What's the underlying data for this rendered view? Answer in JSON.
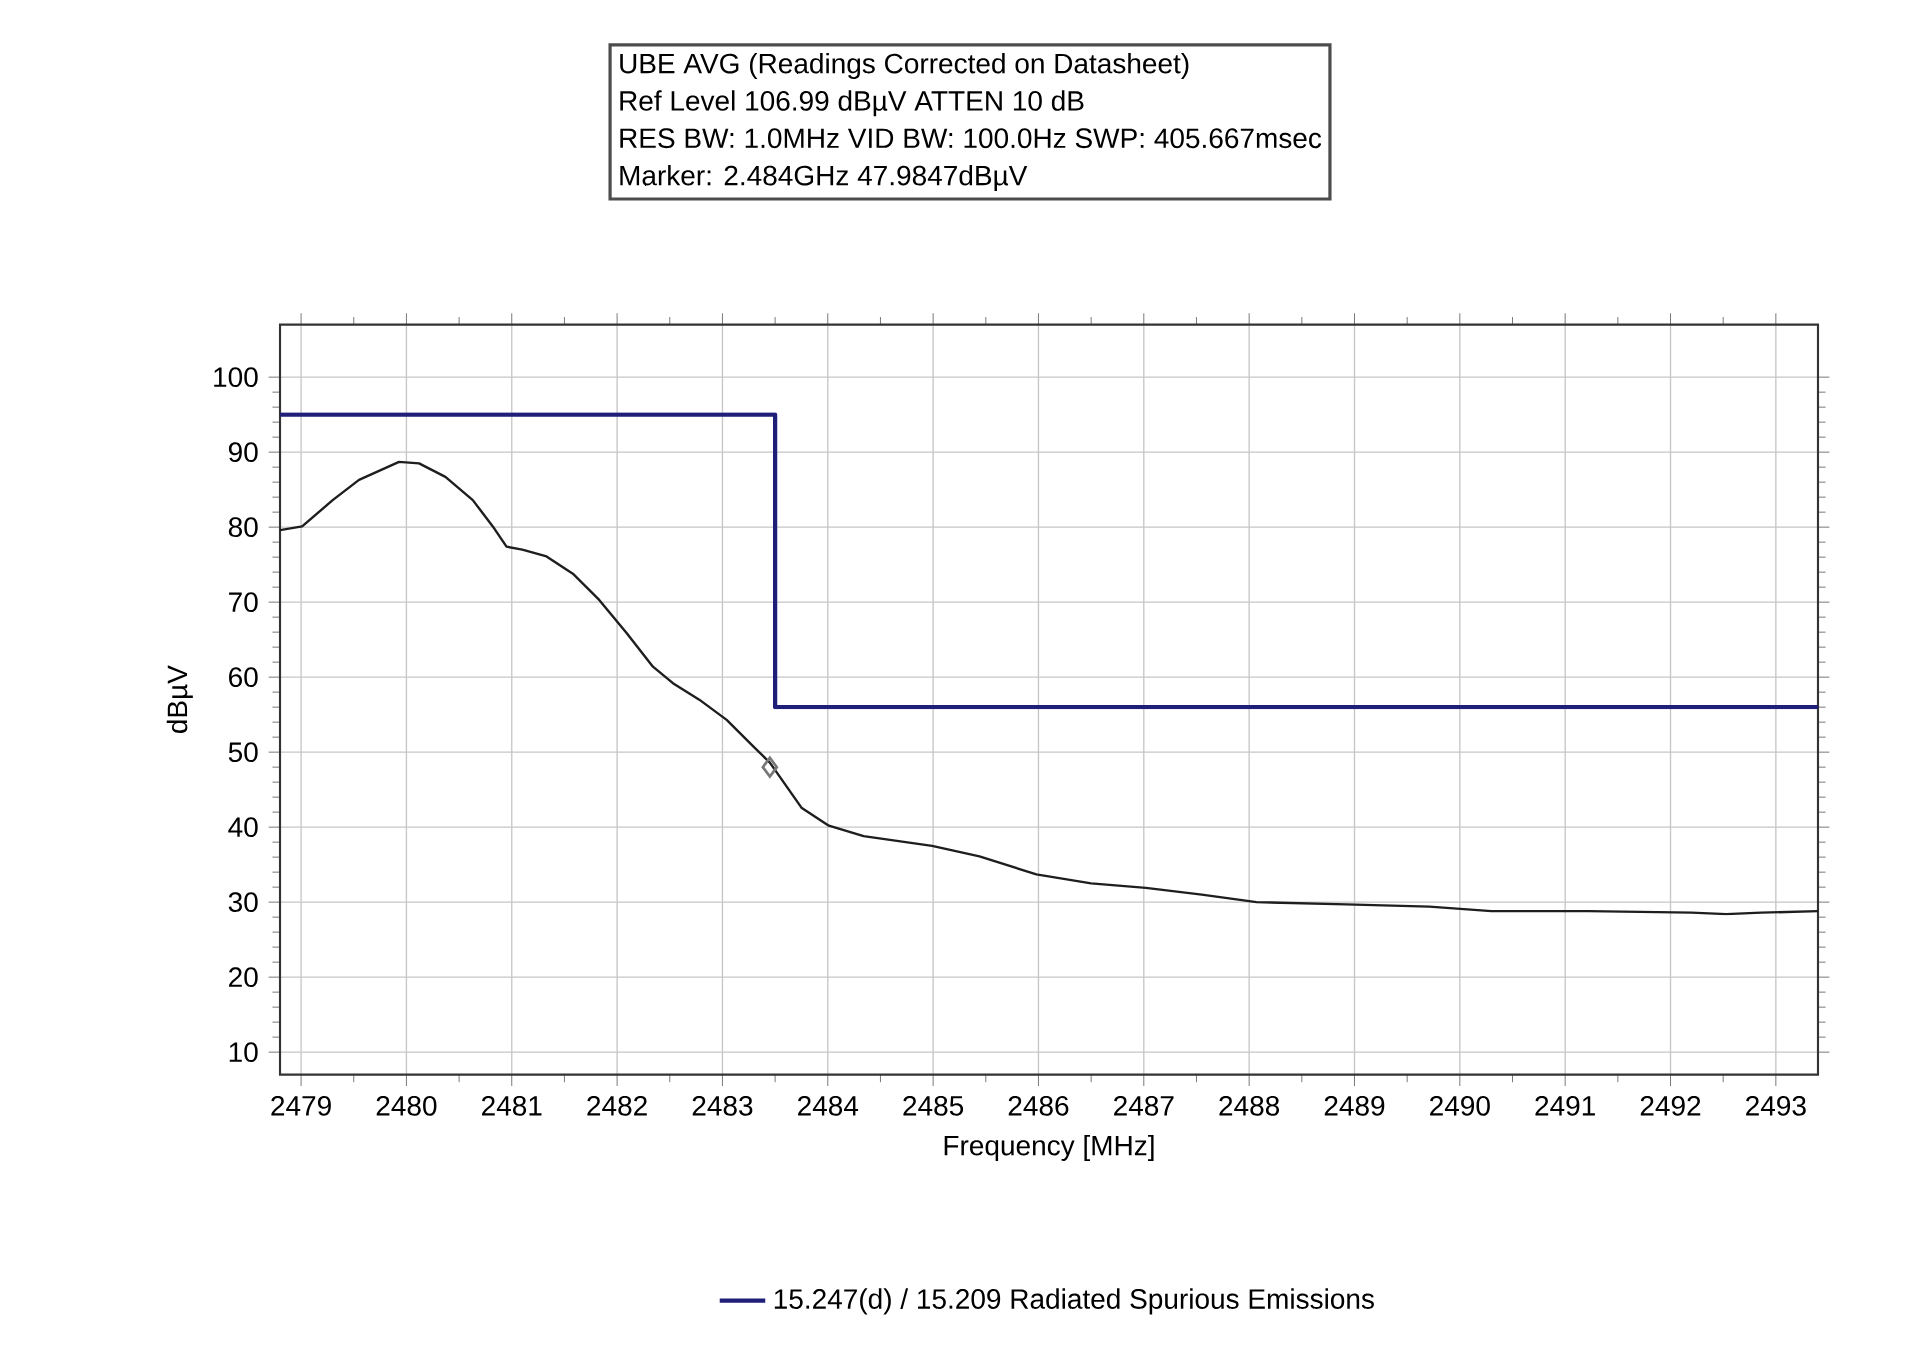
{
  "chart_data": {
    "type": "line",
    "annotations": [
      "UBE AVG (Readings Corrected on Datasheet)",
      "Ref Level 106.99 dBµV    ATTEN 10 dB",
      "RES BW: 1.0MHz  VID BW: 100.0Hz  SWP: 405.667msec",
      "Marker: 2.484GHz  47.9847dBµV"
    ],
    "xlabel": "Frequency [MHz]",
    "ylabel": "dBµV",
    "xlim": [
      2478.8,
      2493.4
    ],
    "ylim": [
      7,
      107
    ],
    "xticks": [
      2479,
      2480,
      2481,
      2482,
      2483,
      2484,
      2485,
      2486,
      2487,
      2488,
      2489,
      2490,
      2491,
      2492,
      2493
    ],
    "yticks": [
      10,
      20,
      30,
      40,
      50,
      60,
      70,
      80,
      90,
      100
    ],
    "grid": true,
    "legend": "bottom",
    "series": [
      {
        "type": "line",
        "color": "#1e1e1e",
        "x": [
          2478.8,
          2479.01,
          2479.3,
          2479.55,
          2479.93,
          2480.12,
          2480.37,
          2480.63,
          2480.82,
          2480.95,
          2481.1,
          2481.33,
          2481.58,
          2481.83,
          2482.09,
          2482.34,
          2482.53,
          2482.78,
          2483.04,
          2483.29,
          2483.45,
          2483.75,
          2484.01,
          2484.34,
          2484.99,
          2485.44,
          2485.98,
          2486.5,
          2487.02,
          2487.55,
          2488.07,
          2488.92,
          2489.71,
          2490.3,
          2491.22,
          2492.2,
          2492.53,
          2492.86,
          2493.4
        ],
        "values": [
          79.6,
          80.1,
          83.6,
          86.3,
          88.7,
          88.5,
          86.7,
          83.6,
          80.1,
          77.4,
          77.0,
          76.1,
          73.8,
          70.3,
          65.9,
          61.4,
          59.2,
          57.0,
          54.3,
          50.8,
          48.6,
          42.6,
          40.2,
          38.8,
          37.5,
          36.1,
          33.7,
          32.5,
          31.9,
          31.0,
          30.0,
          29.7,
          29.4,
          28.8,
          28.8,
          28.6,
          28.4,
          28.6,
          28.8
        ]
      },
      {
        "type": "scatter",
        "marker": "diamond",
        "color": "#777777",
        "x": [
          2483.45
        ],
        "values": [
          48.0
        ]
      },
      {
        "type": "line",
        "name": "15.247(d) / 15.209 Radiated Spurious Emissions",
        "color": "#1f1f7a",
        "x": [
          2478.8,
          2483.5,
          2483.5,
          2493.4
        ],
        "values": [
          95,
          95,
          56,
          56
        ]
      }
    ]
  }
}
